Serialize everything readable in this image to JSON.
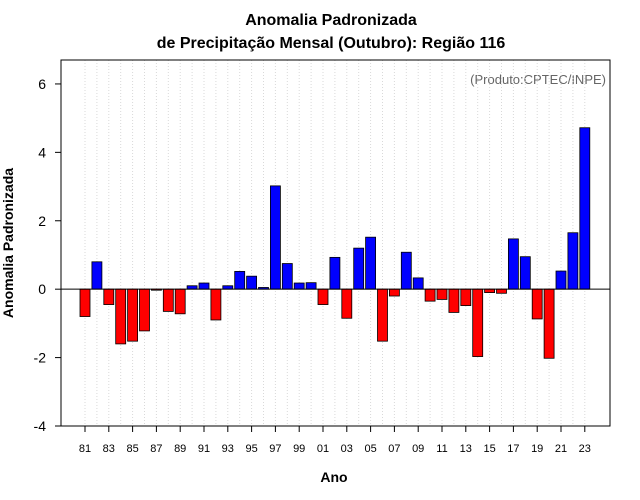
{
  "chart_data": {
    "type": "bar",
    "title_line1": "Anomalia Padronizada",
    "title_line2": "de Precipitação Mensal (Outubro): Região 116",
    "xlabel": "Ano",
    "ylabel": "Anomalia Padronizada",
    "source_note": "(Produto:CPTEC/INPE)",
    "ylim": [
      -4,
      6.7
    ],
    "yticks": [
      -4,
      -2,
      0,
      2,
      4,
      6
    ],
    "ytick_labels": [
      "-4",
      "-2",
      "0",
      "2",
      "4",
      "6"
    ],
    "categories": [
      "81",
      "82",
      "83",
      "84",
      "85",
      "86",
      "87",
      "88",
      "89",
      "90",
      "91",
      "92",
      "93",
      "94",
      "95",
      "96",
      "97",
      "98",
      "99",
      "00",
      "01",
      "02",
      "03",
      "04",
      "05",
      "06",
      "07",
      "08",
      "09",
      "10",
      "11",
      "12",
      "13",
      "14",
      "15",
      "16",
      "17",
      "18",
      "19",
      "20",
      "21",
      "22",
      "23"
    ],
    "xtick_labels": [
      "81",
      "83",
      "85",
      "87",
      "89",
      "91",
      "93",
      "95",
      "97",
      "99",
      "01",
      "03",
      "05",
      "07",
      "09",
      "11",
      "13",
      "15",
      "17",
      "19",
      "21",
      "23"
    ],
    "values": [
      -0.8,
      0.8,
      -0.45,
      -1.6,
      -1.52,
      -1.22,
      -0.03,
      -0.65,
      -0.72,
      0.1,
      0.18,
      -0.9,
      0.1,
      0.52,
      0.38,
      0.05,
      3.02,
      0.75,
      0.18,
      0.19,
      -0.45,
      0.93,
      -0.85,
      1.2,
      1.52,
      -1.52,
      -0.2,
      1.08,
      0.33,
      -0.35,
      -0.3,
      -0.68,
      -0.48,
      -1.97,
      -0.1,
      -0.12,
      1.47,
      0.95,
      -0.87,
      -2.02,
      0.53,
      1.65,
      4.72
    ],
    "colors": {
      "positive": "#0000ff",
      "negative": "#ff0000",
      "grid": "#d9d9d9"
    }
  }
}
